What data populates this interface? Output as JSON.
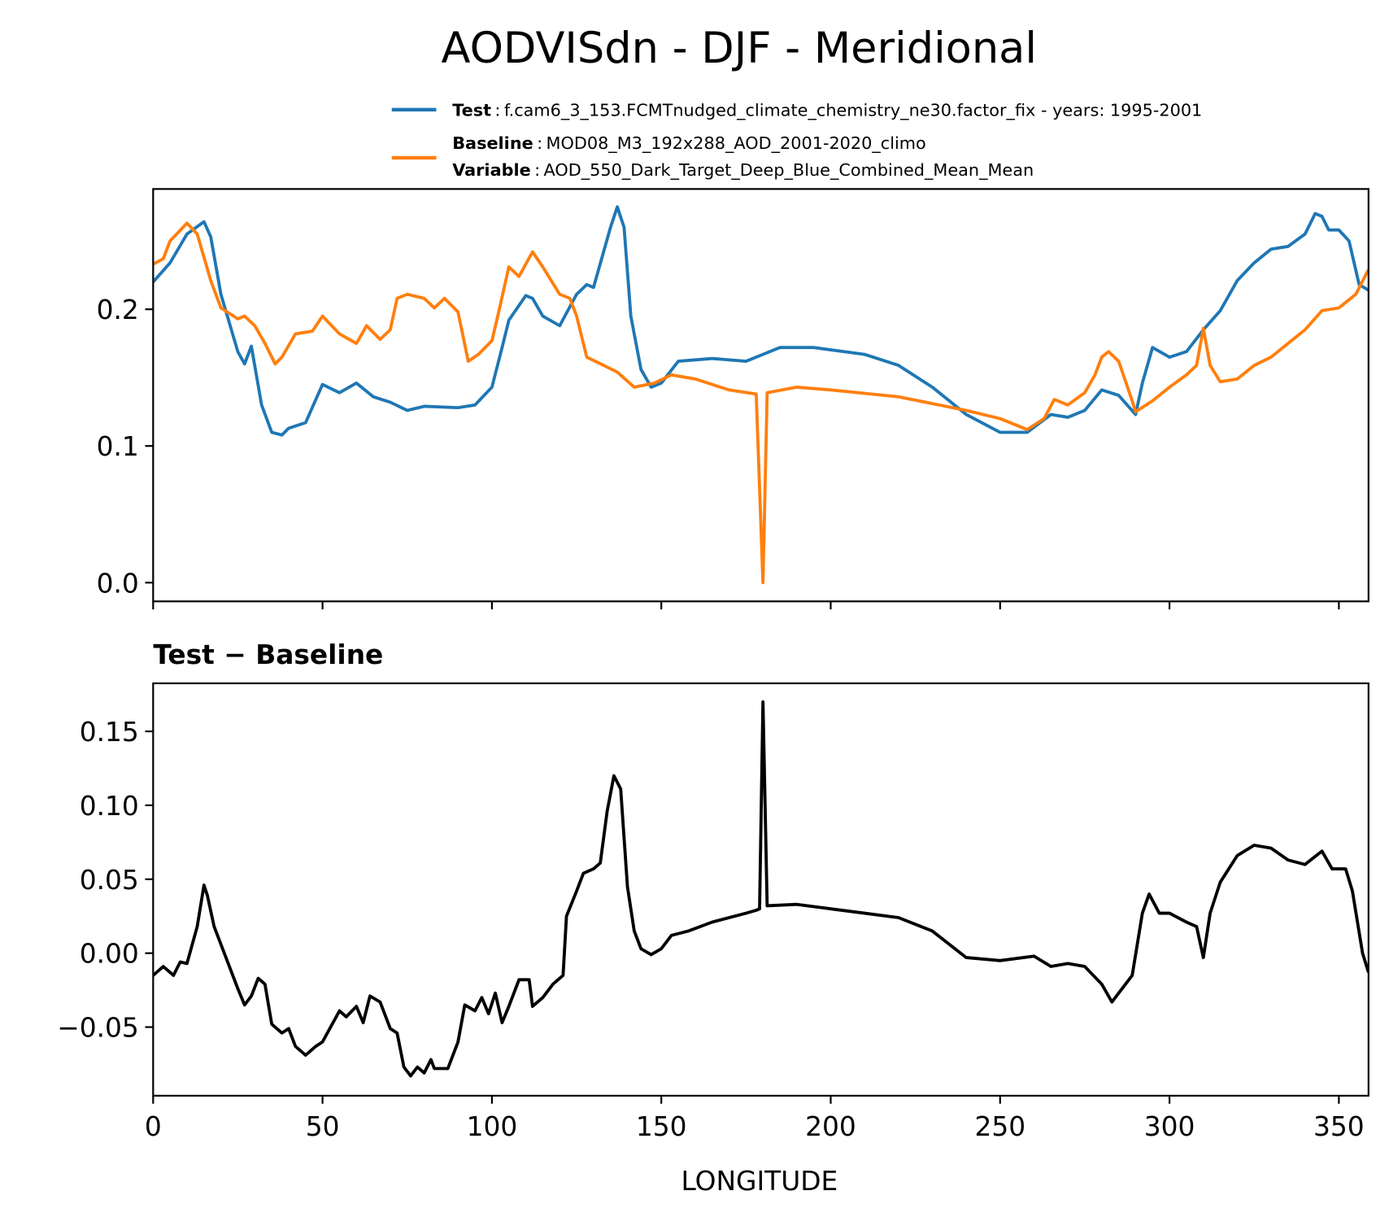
{
  "chart_data": [
    {
      "type": "line",
      "title": "AODVISdn - DJF - Meridional",
      "legend_separator": ":",
      "variable_label": "Variable",
      "variable": "AOD_550_Dark_Target_Deep_Blue_Combined_Mean_Mean",
      "xlim": [
        0,
        358.75
      ],
      "xticks": [
        0,
        50,
        100,
        150,
        200,
        250,
        300,
        350
      ],
      "xtick_labels": false,
      "ylim": [
        -0.0137,
        0.288
      ],
      "yticks": [
        {
          "value": 0,
          "label": "0.0"
        },
        0.1,
        0.2
      ],
      "series": [
        {
          "name": "Test",
          "description": "f.cam6_3_153.FCMTnudged_climate_chemistry_ne30.factor_fix - years: 1995-2001",
          "color": "#1f77b4",
          "x": [
            0,
            5,
            10,
            15,
            17,
            20,
            25,
            27,
            29,
            32,
            35,
            38,
            40,
            45,
            50,
            55,
            60,
            65,
            70,
            75,
            80,
            90,
            95,
            100,
            103,
            105,
            110,
            112,
            115,
            120,
            125,
            128,
            130,
            135,
            137,
            139,
            141,
            144,
            147,
            150,
            155,
            165,
            175,
            180,
            185,
            195,
            210,
            220,
            230,
            240,
            250,
            258,
            265,
            270,
            275,
            280,
            285,
            290,
            292,
            295,
            300,
            305,
            310,
            315,
            320,
            325,
            330,
            335,
            340,
            343,
            345,
            347,
            350,
            353,
            356,
            358.75
          ],
          "values": [
            0.22,
            0.234,
            0.255,
            0.264,
            0.253,
            0.211,
            0.169,
            0.16,
            0.173,
            0.13,
            0.11,
            0.108,
            0.113,
            0.117,
            0.145,
            0.139,
            0.146,
            0.136,
            0.132,
            0.126,
            0.129,
            0.128,
            0.13,
            0.143,
            0.172,
            0.192,
            0.21,
            0.208,
            0.195,
            0.188,
            0.211,
            0.218,
            0.216,
            0.26,
            0.275,
            0.26,
            0.195,
            0.156,
            0.143,
            0.146,
            0.162,
            0.164,
            0.162,
            0.167,
            0.172,
            0.172,
            0.167,
            0.159,
            0.143,
            0.123,
            0.11,
            0.11,
            0.123,
            0.121,
            0.126,
            0.141,
            0.137,
            0.123,
            0.146,
            0.172,
            0.165,
            0.169,
            0.185,
            0.199,
            0.221,
            0.234,
            0.244,
            0.246,
            0.255,
            0.27,
            0.268,
            0.258,
            0.258,
            0.25,
            0.218,
            0.214
          ]
        },
        {
          "name": "Baseline",
          "description": "MOD08_M3_192x288_AOD_2001-2020_climo",
          "color": "#ff7f0e",
          "x": [
            0,
            3,
            5,
            10,
            13,
            17,
            20,
            25,
            27,
            30,
            33,
            36,
            38,
            42,
            47,
            50,
            55,
            60,
            63,
            67,
            70,
            72,
            75,
            80,
            83,
            86,
            90,
            93,
            96,
            100,
            102,
            105,
            108,
            112,
            115,
            120,
            123,
            125,
            128,
            133,
            137,
            142,
            148,
            153,
            160,
            170,
            178,
            180,
            181.25,
            190,
            200,
            220,
            240,
            250,
            258,
            263,
            266,
            270,
            275,
            278,
            280,
            282,
            285,
            289,
            290,
            295,
            300,
            305,
            308,
            310,
            312,
            315,
            320,
            325,
            330,
            335,
            340,
            345,
            350,
            355,
            358.75
          ],
          "values": [
            0.233,
            0.237,
            0.25,
            0.263,
            0.255,
            0.221,
            0.201,
            0.193,
            0.195,
            0.188,
            0.175,
            0.16,
            0.165,
            0.182,
            0.184,
            0.195,
            0.182,
            0.175,
            0.188,
            0.178,
            0.185,
            0.208,
            0.211,
            0.208,
            0.201,
            0.208,
            0.198,
            0.162,
            0.167,
            0.177,
            0.198,
            0.231,
            0.224,
            0.242,
            0.231,
            0.211,
            0.208,
            0.195,
            0.165,
            0.159,
            0.154,
            0.143,
            0.146,
            0.152,
            0.149,
            0.141,
            0.138,
            0.0,
            0.139,
            0.143,
            0.141,
            0.136,
            0.126,
            0.12,
            0.112,
            0.12,
            0.134,
            0.13,
            0.139,
            0.152,
            0.165,
            0.169,
            0.162,
            0.133,
            0.125,
            0.133,
            0.143,
            0.152,
            0.159,
            0.186,
            0.159,
            0.147,
            0.149,
            0.159,
            0.165,
            0.175,
            0.185,
            0.199,
            0.201,
            0.211,
            0.229
          ]
        }
      ]
    },
    {
      "type": "line",
      "title": "Test − Baseline",
      "xlabel": "LONGITUDE",
      "xlim": [
        0,
        358.75
      ],
      "xticks": [
        0,
        50,
        100,
        150,
        200,
        250,
        300,
        350
      ],
      "xtick_labels": true,
      "ylim": [
        -0.0964,
        0.1825
      ],
      "yticks": [
        {
          "value": -0.05,
          "label": "−0.05"
        },
        {
          "value": 0,
          "label": "0.00"
        },
        0.05,
        {
          "value": 0.1,
          "label": "0.10"
        },
        0.15
      ],
      "series": [
        {
          "color": "#000000",
          "x": [
            0,
            3,
            6,
            8,
            10,
            13,
            15,
            16,
            18,
            22,
            25,
            27,
            29,
            31,
            33,
            35,
            38,
            40,
            42,
            45,
            48,
            50,
            55,
            57,
            60,
            62,
            64,
            67,
            70,
            72,
            74,
            76,
            78,
            80,
            82,
            83,
            87,
            90,
            92,
            95,
            97,
            99,
            101,
            103,
            105,
            108,
            111,
            112,
            115,
            118,
            121,
            122,
            125,
            127,
            130,
            132,
            134,
            136,
            138,
            140,
            142,
            144,
            147,
            150,
            153,
            158,
            165,
            175,
            178,
            179,
            180,
            181.25,
            190,
            200,
            210,
            220,
            230,
            240,
            250,
            260,
            265,
            270,
            275,
            280,
            283,
            286,
            289,
            292,
            294,
            297,
            300,
            305,
            308,
            310,
            312,
            315,
            320,
            325,
            330,
            335,
            340,
            345,
            348,
            352,
            354,
            357,
            358.75
          ],
          "values": [
            -0.015,
            -0.009,
            -0.015,
            -0.006,
            -0.007,
            0.018,
            0.046,
            0.039,
            0.018,
            -0.006,
            -0.024,
            -0.035,
            -0.029,
            -0.017,
            -0.021,
            -0.048,
            -0.054,
            -0.051,
            -0.063,
            -0.069,
            -0.063,
            -0.06,
            -0.039,
            -0.043,
            -0.036,
            -0.047,
            -0.029,
            -0.033,
            -0.051,
            -0.054,
            -0.077,
            -0.083,
            -0.077,
            -0.081,
            -0.072,
            -0.078,
            -0.078,
            -0.06,
            -0.035,
            -0.039,
            -0.03,
            -0.041,
            -0.027,
            -0.047,
            -0.036,
            -0.018,
            -0.018,
            -0.036,
            -0.03,
            -0.021,
            -0.015,
            0.025,
            0.042,
            0.054,
            0.057,
            0.061,
            0.096,
            0.12,
            0.111,
            0.045,
            0.015,
            0.003,
            -0.001,
            0.003,
            0.012,
            0.015,
            0.021,
            0.027,
            0.029,
            0.03,
            0.17,
            0.032,
            0.033,
            0.03,
            0.027,
            0.024,
            0.015,
            -0.003,
            -0.005,
            -0.002,
            -0.009,
            -0.007,
            -0.009,
            -0.021,
            -0.033,
            -0.024,
            -0.015,
            0.027,
            0.04,
            0.027,
            0.027,
            0.021,
            0.018,
            -0.003,
            0.027,
            0.048,
            0.066,
            0.073,
            0.071,
            0.063,
            0.06,
            0.069,
            0.057,
            0.057,
            0.042,
            0.0,
            -0.013
          ]
        }
      ]
    }
  ]
}
